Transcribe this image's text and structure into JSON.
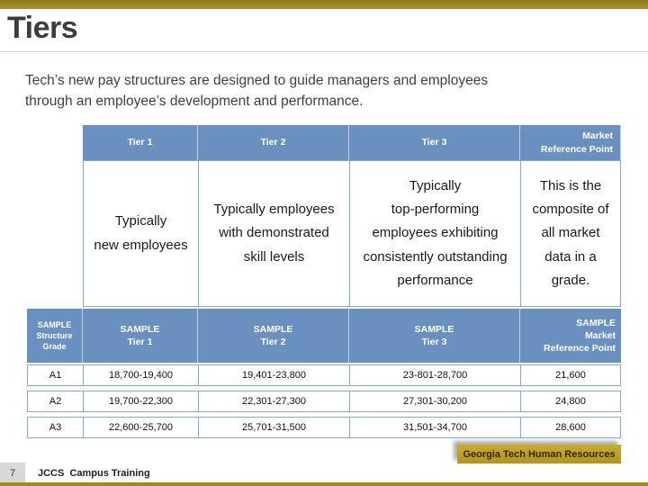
{
  "slide": {
    "title": "Tiers",
    "intro": "Tech’s new pay structures are designed to guide managers and employees\nthrough an employee’s development and performance."
  },
  "tier_table": {
    "headers": [
      "Tier 1",
      "Tier 2",
      "Tier 3",
      "Market\nReference Point"
    ],
    "descriptions": [
      "Typically\nnew employees",
      "Typically employees\nwith demonstrated\nskill levels",
      "Typically\ntop-performing\nemployees exhibiting\nconsistently outstanding\nperformance",
      "This is the\ncomposite of\nall market\ndata in a\ngrade."
    ]
  },
  "sample_table": {
    "headers": [
      "SAMPLE\nStructure\nGrade",
      "SAMPLE\nTier 1",
      "SAMPLE\nTier 2",
      "SAMPLE\nTier 3",
      "SAMPLE\nMarket\nReference Point"
    ],
    "rows": [
      [
        "A1",
        "18,700-19,400",
        "19,401-23,800",
        "23-801-28,700",
        "21,600"
      ],
      [
        "A2",
        "19,700-22,300",
        "22,301-27,300",
        "27,301-30,200",
        "24,800"
      ],
      [
        "A3",
        "22,600-25,700",
        "25,701-31,500",
        "31,501-34,700",
        "28,600"
      ]
    ]
  },
  "footer": {
    "page_number": "7",
    "training_label": "JCCS  Campus Training",
    "badge": "Georgia Tech Human Resources"
  },
  "colors": {
    "gold_bar": "#A08A22",
    "badge_gold": "#C0A226",
    "header_blue": "#6A90BF",
    "border_blue": "#86A7CF"
  }
}
